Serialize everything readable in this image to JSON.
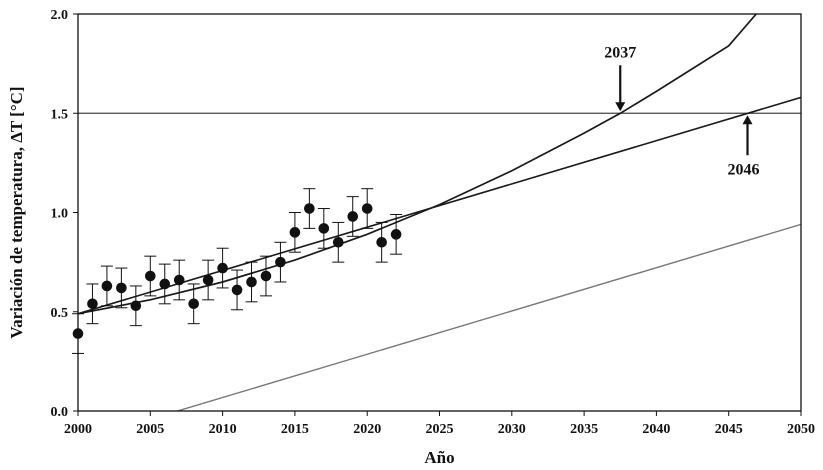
{
  "chart_data": {
    "type": "scatter",
    "title": "",
    "xlabel": "Año",
    "ylabel": "Variación de temperatura, ΔT [°C]",
    "xlim": [
      2000,
      2050
    ],
    "ylim": [
      0.0,
      2.0
    ],
    "xticks": [
      2000,
      2005,
      2010,
      2015,
      2020,
      2025,
      2030,
      2035,
      2040,
      2045,
      2050
    ],
    "yticks": [
      "0.0",
      "0.5",
      "1.0",
      "1.5",
      "2.0"
    ],
    "grid": false,
    "legend": "none",
    "colors": {
      "points": "#111111",
      "fit_lines": "#1a1a1a",
      "threshold": "#444444",
      "baseline": "#777777"
    },
    "series": [
      {
        "kind": "points-with-error",
        "x": [
          2000,
          2001,
          2002,
          2003,
          2004,
          2005,
          2006,
          2007,
          2008,
          2009,
          2010,
          2011,
          2012,
          2013,
          2014,
          2015,
          2016,
          2017,
          2018,
          2019,
          2020,
          2021,
          2022
        ],
        "y": [
          0.39,
          0.54,
          0.63,
          0.62,
          0.53,
          0.68,
          0.64,
          0.66,
          0.54,
          0.66,
          0.72,
          0.61,
          0.65,
          0.68,
          0.75,
          0.9,
          1.02,
          0.92,
          0.85,
          0.98,
          1.02,
          0.85,
          0.89
        ],
        "err": [
          0.1,
          0.1,
          0.1,
          0.1,
          0.1,
          0.1,
          0.1,
          0.1,
          0.1,
          0.1,
          0.1,
          0.1,
          0.1,
          0.1,
          0.1,
          0.1,
          0.1,
          0.1,
          0.1,
          0.1,
          0.1,
          0.1,
          0.1
        ]
      },
      {
        "kind": "line",
        "x": [
          2000,
          2050
        ],
        "y": [
          0.49,
          1.58
        ]
      },
      {
        "kind": "curve",
        "x": [
          2000,
          2005,
          2010,
          2015,
          2020,
          2025,
          2030,
          2035,
          2037.5,
          2040,
          2045,
          2046.9
        ],
        "y": [
          0.49,
          0.56,
          0.65,
          0.76,
          0.89,
          1.04,
          1.21,
          1.4,
          1.5,
          1.61,
          1.84,
          2.0
        ]
      },
      {
        "kind": "line",
        "x": [
          2000,
          2050
        ],
        "y": [
          1.5,
          1.5
        ]
      },
      {
        "kind": "line",
        "x": [
          2000,
          2050
        ],
        "y": [
          -0.15,
          0.94
        ]
      }
    ],
    "annotations": [
      {
        "label": "2037",
        "x": 2037.5,
        "y": 1.5,
        "position": "above"
      },
      {
        "label": "2046",
        "x": 2046.3,
        "y": 1.5,
        "position": "below"
      }
    ]
  }
}
